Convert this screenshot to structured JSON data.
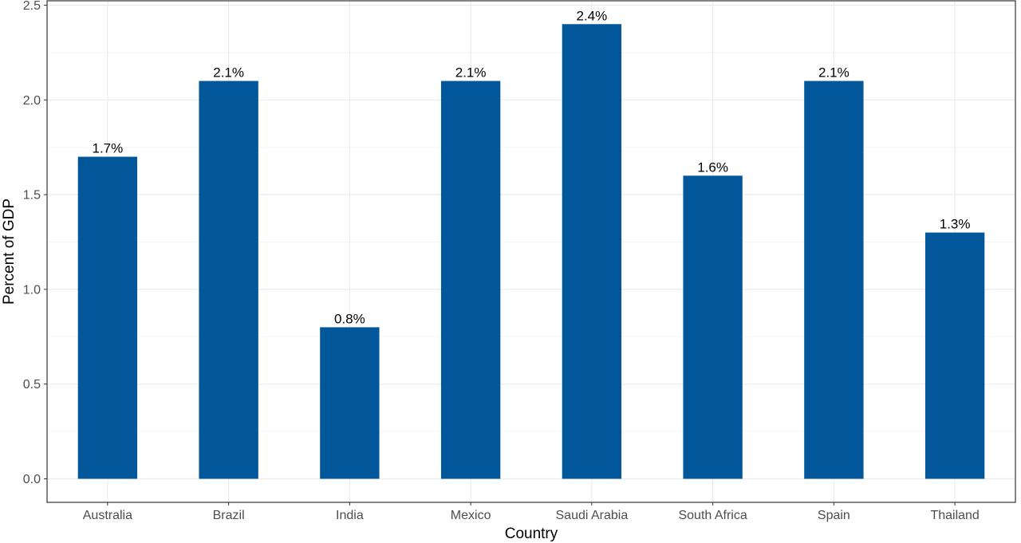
{
  "chart_data": {
    "type": "bar",
    "title": "",
    "xlabel": "Country",
    "ylabel": "Percent of GDP",
    "categories": [
      "Australia",
      "Brazil",
      "India",
      "Mexico",
      "Saudi Arabia",
      "South Africa",
      "Spain",
      "Thailand"
    ],
    "values": [
      1.7,
      2.1,
      0.8,
      2.1,
      2.4,
      1.6,
      2.1,
      1.3
    ],
    "data_labels": [
      "1.7%",
      "2.1%",
      "0.8%",
      "2.1%",
      "2.4%",
      "1.6%",
      "2.1%",
      "1.3%"
    ],
    "ylim": [
      0,
      2.5
    ],
    "yticks": [
      0,
      0.5,
      1.0,
      1.5,
      2.0,
      2.5
    ],
    "ytick_labels": [
      "0.0",
      "0.5",
      "1.0",
      "1.5",
      "2.0",
      "2.5"
    ],
    "grid": true,
    "legend": "none",
    "colors": {
      "bar": "#02579b",
      "grid_major": "#ebebeb",
      "grid_minor": "#f5f5f5",
      "panel_border": "#333333"
    }
  }
}
